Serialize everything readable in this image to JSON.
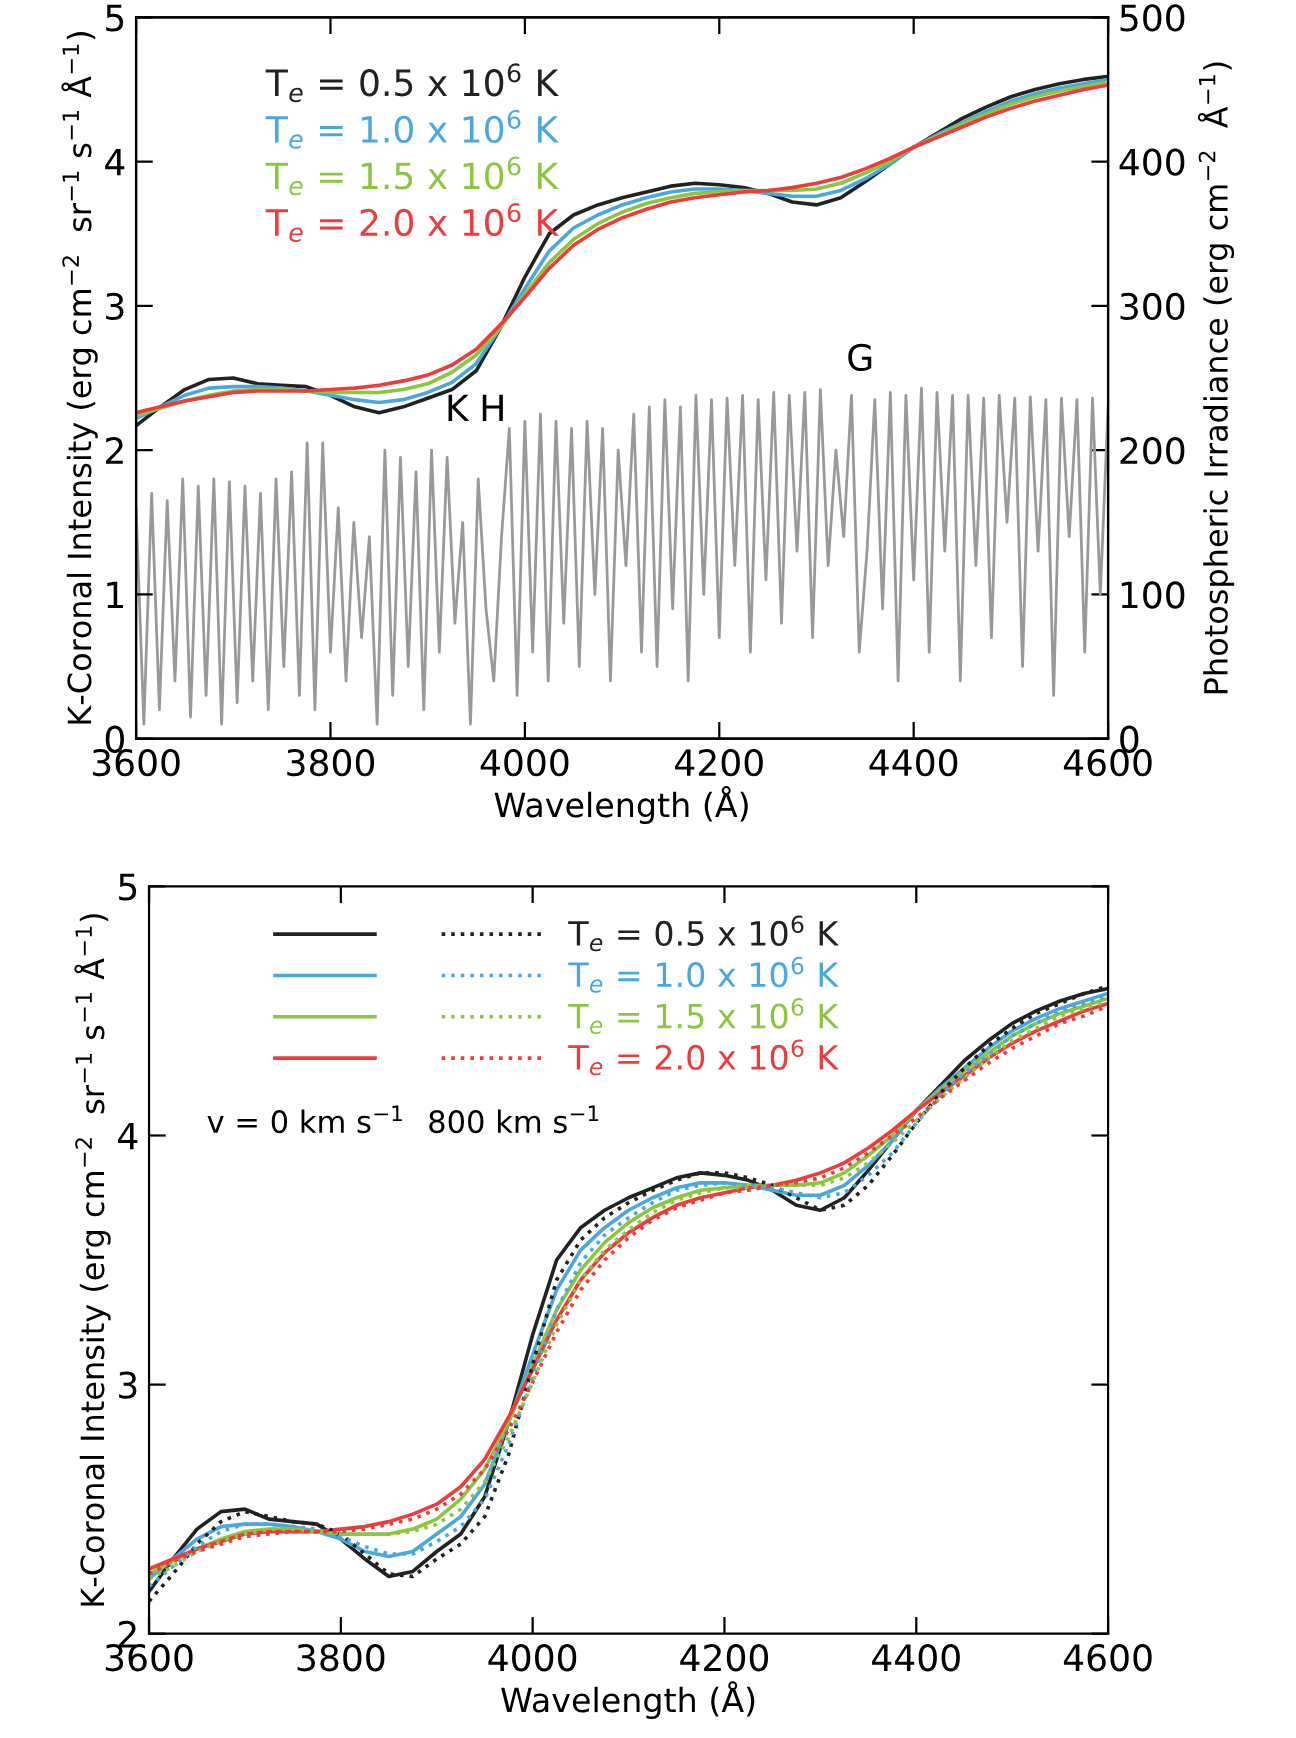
{
  "chart_data": [
    {
      "type": "line",
      "xlabel": "Wavelength (Å)",
      "ylabel": "K-Coronal Intensity (erg cm$^{−2}$  sr$^{−1}$ s$^{−1}$ Å$^{−1}$)",
      "y2label": "Photospheric Irradiance (erg cm$^{−2}$  Å$^{−1}$)",
      "x": [
        3600,
        3625,
        3650,
        3675,
        3700,
        3725,
        3750,
        3775,
        3800,
        3825,
        3850,
        3875,
        3900,
        3925,
        3950,
        3975,
        4000,
        4025,
        4050,
        4075,
        4100,
        4125,
        4150,
        4175,
        4200,
        4225,
        4250,
        4275,
        4300,
        4325,
        4350,
        4375,
        4400,
        4425,
        4450,
        4475,
        4500,
        4525,
        4550,
        4575,
        4600
      ],
      "xlim": [
        3600,
        4600
      ],
      "xticks": [
        3600,
        3800,
        4000,
        4200,
        4400,
        4600
      ],
      "ylim": [
        0,
        5
      ],
      "yticks": [
        0,
        1,
        2,
        3,
        4,
        5
      ],
      "y2lim": [
        0,
        500
      ],
      "y2ticks": [
        0,
        100,
        200,
        300,
        400,
        500
      ],
      "grid": false,
      "legend": "top left",
      "marker": "none",
      "series": [
        {
          "name": "T$_{e}$ = 0.5 x 10$^{6}$ K",
          "color": "#222222",
          "line_style": "solid",
          "values": [
            2.17,
            2.3,
            2.42,
            2.49,
            2.5,
            2.46,
            2.45,
            2.44,
            2.38,
            2.3,
            2.26,
            2.3,
            2.36,
            2.42,
            2.55,
            2.85,
            3.2,
            3.5,
            3.63,
            3.7,
            3.75,
            3.79,
            3.83,
            3.85,
            3.84,
            3.82,
            3.78,
            3.72,
            3.7,
            3.75,
            3.86,
            3.98,
            4.1,
            4.2,
            4.3,
            4.38,
            4.45,
            4.5,
            4.54,
            4.57,
            4.59
          ]
        },
        {
          "name": "T$_{e}$ = 1.0 x 10$^{6}$ K",
          "color": "#4aa8e0",
          "line_style": "solid",
          "values": [
            2.22,
            2.3,
            2.38,
            2.43,
            2.44,
            2.44,
            2.43,
            2.41,
            2.38,
            2.35,
            2.33,
            2.35,
            2.4,
            2.47,
            2.6,
            2.85,
            3.12,
            3.38,
            3.54,
            3.63,
            3.7,
            3.75,
            3.79,
            3.81,
            3.81,
            3.8,
            3.78,
            3.76,
            3.76,
            3.8,
            3.88,
            3.98,
            4.1,
            4.19,
            4.27,
            4.35,
            4.42,
            4.47,
            4.51,
            4.54,
            4.57
          ]
        },
        {
          "name": "T$_{e}$ = 1.5 x 10$^{6}$ K",
          "color": "#8cc63f",
          "line_style": "solid",
          "values": [
            2.24,
            2.29,
            2.34,
            2.38,
            2.41,
            2.42,
            2.42,
            2.41,
            2.4,
            2.4,
            2.4,
            2.42,
            2.46,
            2.54,
            2.66,
            2.85,
            3.08,
            3.3,
            3.46,
            3.57,
            3.65,
            3.71,
            3.75,
            3.78,
            3.79,
            3.8,
            3.8,
            3.8,
            3.81,
            3.85,
            3.92,
            4.0,
            4.1,
            4.18,
            4.26,
            4.33,
            4.4,
            4.45,
            4.49,
            4.52,
            4.55
          ]
        },
        {
          "name": "T$_{e}$ = 2.0 x 10$^{6}$ K",
          "color": "#ee3b3b",
          "line_style": "solid",
          "values": [
            2.26,
            2.3,
            2.34,
            2.37,
            2.4,
            2.41,
            2.41,
            2.41,
            2.42,
            2.43,
            2.45,
            2.48,
            2.52,
            2.59,
            2.7,
            2.87,
            3.06,
            3.26,
            3.42,
            3.53,
            3.61,
            3.67,
            3.72,
            3.75,
            3.77,
            3.79,
            3.8,
            3.82,
            3.85,
            3.89,
            3.95,
            4.02,
            4.1,
            4.17,
            4.24,
            4.31,
            4.37,
            4.42,
            4.46,
            4.5,
            4.53
          ]
        },
        {
          "color": "#999999",
          "axis": "y2",
          "line_style": "solid",
          "x": [
            3600,
            3608,
            3616,
            3624,
            3632,
            3640,
            3648,
            3656,
            3664,
            3672,
            3680,
            3688,
            3696,
            3704,
            3712,
            3720,
            3728,
            3736,
            3744,
            3752,
            3760,
            3768,
            3776,
            3784,
            3792,
            3800,
            3808,
            3816,
            3824,
            3832,
            3840,
            3848,
            3856,
            3864,
            3872,
            3880,
            3888,
            3896,
            3904,
            3912,
            3920,
            3928,
            3936,
            3944,
            3952,
            3960,
            3968,
            3976,
            3984,
            3992,
            4000,
            4008,
            4016,
            4024,
            4032,
            4040,
            4048,
            4056,
            4064,
            4072,
            4080,
            4088,
            4096,
            4104,
            4112,
            4120,
            4128,
            4136,
            4144,
            4152,
            4160,
            4168,
            4176,
            4184,
            4192,
            4200,
            4208,
            4216,
            4224,
            4232,
            4240,
            4248,
            4256,
            4264,
            4272,
            4280,
            4288,
            4296,
            4304,
            4312,
            4320,
            4328,
            4336,
            4344,
            4352,
            4360,
            4368,
            4376,
            4384,
            4392,
            4400,
            4408,
            4416,
            4424,
            4432,
            4440,
            4448,
            4456,
            4464,
            4472,
            4480,
            4488,
            4496,
            4504,
            4512,
            4520,
            4528,
            4536,
            4544,
            4552,
            4560,
            4568,
            4576,
            4584,
            4592,
            4600
          ],
          "values": [
            160,
            10,
            170,
            20,
            165,
            40,
            180,
            15,
            175,
            30,
            180,
            10,
            178,
            25,
            175,
            40,
            170,
            20,
            180,
            50,
            185,
            30,
            205,
            20,
            205,
            60,
            160,
            40,
            150,
            70,
            140,
            10,
            200,
            30,
            195,
            50,
            185,
            20,
            200,
            60,
            195,
            80,
            150,
            10,
            180,
            90,
            40,
            140,
            215,
            30,
            220,
            60,
            225,
            40,
            220,
            80,
            215,
            50,
            220,
            100,
            215,
            40,
            200,
            120,
            225,
            60,
            230,
            50,
            235,
            90,
            230,
            40,
            238,
            100,
            235,
            70,
            236,
            120,
            238,
            60,
            235,
            110,
            240,
            80,
            238,
            130,
            240,
            70,
            242,
            120,
            200,
            140,
            238,
            60,
            130,
            235,
            90,
            240,
            40,
            238,
            110,
            243,
            60,
            240,
            130,
            238,
            40,
            238,
            120,
            236,
            70,
            238,
            150,
            236,
            50,
            237,
            130,
            235,
            30,
            236,
            140,
            235,
            60,
            236,
            100,
            230
          ]
        }
      ],
      "annotations": [
        "K",
        "H",
        "G"
      ]
    },
    {
      "type": "line",
      "xlabel": "Wavelength (Å)",
      "ylabel": "K-Coronal Intensity (erg cm$^{−2}$  sr$^{−1}$ s$^{−1}$ Å$^{−1}$)",
      "x": [
        3600,
        3625,
        3650,
        3675,
        3700,
        3725,
        3750,
        3775,
        3800,
        3825,
        3850,
        3875,
        3900,
        3925,
        3950,
        3975,
        4000,
        4025,
        4050,
        4075,
        4100,
        4125,
        4150,
        4175,
        4200,
        4225,
        4250,
        4275,
        4300,
        4325,
        4350,
        4375,
        4400,
        4425,
        4450,
        4475,
        4500,
        4525,
        4550,
        4575,
        4600
      ],
      "xlim": [
        3600,
        4600
      ],
      "xticks": [
        3600,
        3800,
        4000,
        4200,
        4400,
        4600
      ],
      "ylim": [
        2,
        5
      ],
      "yticks": [
        2,
        3,
        4,
        5
      ],
      "grid": false,
      "legend": "top left",
      "marker": "none",
      "series": [
        {
          "name": "T$_{e}$ = 0.5 x 10$^{6}$ K",
          "color": "#222222",
          "line_style": "solid",
          "values": [
            2.17,
            2.3,
            2.42,
            2.49,
            2.5,
            2.46,
            2.45,
            2.44,
            2.38,
            2.3,
            2.23,
            2.25,
            2.33,
            2.4,
            2.55,
            2.85,
            3.2,
            3.5,
            3.63,
            3.7,
            3.75,
            3.79,
            3.83,
            3.85,
            3.84,
            3.82,
            3.78,
            3.72,
            3.7,
            3.75,
            3.86,
            3.98,
            4.1,
            4.2,
            4.3,
            4.38,
            4.45,
            4.5,
            4.54,
            4.57,
            4.59
          ]
        },
        {
          "name": "T$_{e}$ = 1.0 x 10$^{6}$ K",
          "color": "#4aa8e0",
          "line_style": "solid",
          "values": [
            2.22,
            2.3,
            2.38,
            2.43,
            2.44,
            2.44,
            2.43,
            2.41,
            2.38,
            2.33,
            2.31,
            2.33,
            2.4,
            2.47,
            2.6,
            2.85,
            3.12,
            3.38,
            3.54,
            3.63,
            3.7,
            3.75,
            3.79,
            3.81,
            3.81,
            3.8,
            3.78,
            3.76,
            3.76,
            3.8,
            3.88,
            3.98,
            4.1,
            4.19,
            4.27,
            4.35,
            4.42,
            4.47,
            4.51,
            4.54,
            4.57
          ]
        },
        {
          "name": "T$_{e}$ = 1.5 x 10$^{6}$ K",
          "color": "#8cc63f",
          "line_style": "solid",
          "values": [
            2.24,
            2.29,
            2.34,
            2.38,
            2.41,
            2.42,
            2.42,
            2.41,
            2.4,
            2.4,
            2.4,
            2.42,
            2.46,
            2.54,
            2.66,
            2.85,
            3.08,
            3.3,
            3.46,
            3.57,
            3.65,
            3.71,
            3.75,
            3.78,
            3.79,
            3.8,
            3.8,
            3.8,
            3.81,
            3.85,
            3.92,
            4.0,
            4.1,
            4.18,
            4.26,
            4.33,
            4.4,
            4.45,
            4.49,
            4.52,
            4.55
          ]
        },
        {
          "name": "T$_{e}$ = 2.0 x 10$^{6}$ K",
          "color": "#ee3b3b",
          "line_style": "solid",
          "values": [
            2.26,
            2.3,
            2.34,
            2.37,
            2.4,
            2.41,
            2.41,
            2.41,
            2.42,
            2.43,
            2.45,
            2.48,
            2.52,
            2.59,
            2.7,
            2.87,
            3.06,
            3.26,
            3.42,
            3.53,
            3.61,
            3.67,
            3.72,
            3.75,
            3.77,
            3.79,
            3.8,
            3.82,
            3.85,
            3.89,
            3.95,
            4.02,
            4.1,
            4.17,
            4.24,
            4.31,
            4.37,
            4.42,
            4.46,
            4.5,
            4.53
          ]
        },
        {
          "color": "#222222",
          "line_style": "dotted",
          "values": [
            2.13,
            2.24,
            2.36,
            2.45,
            2.49,
            2.47,
            2.45,
            2.44,
            2.4,
            2.32,
            2.24,
            2.23,
            2.3,
            2.36,
            2.47,
            2.72,
            3.08,
            3.42,
            3.58,
            3.67,
            3.73,
            3.78,
            3.82,
            3.85,
            3.85,
            3.83,
            3.8,
            3.75,
            3.7,
            3.72,
            3.8,
            3.92,
            4.05,
            4.17,
            4.27,
            4.36,
            4.43,
            4.49,
            4.53,
            4.57,
            4.6
          ]
        },
        {
          "color": "#4aa8e0",
          "line_style": "dotted",
          "values": [
            2.19,
            2.27,
            2.35,
            2.41,
            2.44,
            2.44,
            2.43,
            2.42,
            2.39,
            2.35,
            2.32,
            2.32,
            2.37,
            2.43,
            2.54,
            2.76,
            3.03,
            3.3,
            3.49,
            3.6,
            3.67,
            3.73,
            3.78,
            3.8,
            3.81,
            3.8,
            3.79,
            3.77,
            3.75,
            3.77,
            3.84,
            3.93,
            4.05,
            4.16,
            4.25,
            4.32,
            4.4,
            4.45,
            4.5,
            4.53,
            4.56
          ]
        },
        {
          "color": "#8cc63f",
          "line_style": "dotted",
          "values": [
            2.22,
            2.27,
            2.33,
            2.37,
            2.4,
            2.42,
            2.42,
            2.41,
            2.4,
            2.4,
            2.4,
            2.41,
            2.44,
            2.5,
            2.61,
            2.79,
            3.01,
            3.24,
            3.42,
            3.54,
            3.62,
            3.69,
            3.74,
            3.77,
            3.79,
            3.79,
            3.8,
            3.8,
            3.8,
            3.83,
            3.89,
            3.97,
            4.06,
            4.15,
            4.23,
            4.31,
            4.38,
            4.43,
            4.48,
            4.51,
            4.54
          ]
        },
        {
          "color": "#ee3b3b",
          "line_style": "dotted",
          "values": [
            2.24,
            2.29,
            2.33,
            2.36,
            2.39,
            2.4,
            2.41,
            2.41,
            2.41,
            2.42,
            2.44,
            2.46,
            2.5,
            2.56,
            2.66,
            2.82,
            3.01,
            3.21,
            3.38,
            3.5,
            3.59,
            3.66,
            3.71,
            3.74,
            3.77,
            3.78,
            3.8,
            3.81,
            3.83,
            3.87,
            3.93,
            4.0,
            4.07,
            4.15,
            4.22,
            4.29,
            4.35,
            4.4,
            4.45,
            4.48,
            4.52
          ]
        }
      ],
      "annotations": [
        "v = 0 km s$^{−1}$",
        "800 km s$^{−1}$"
      ]
    }
  ]
}
